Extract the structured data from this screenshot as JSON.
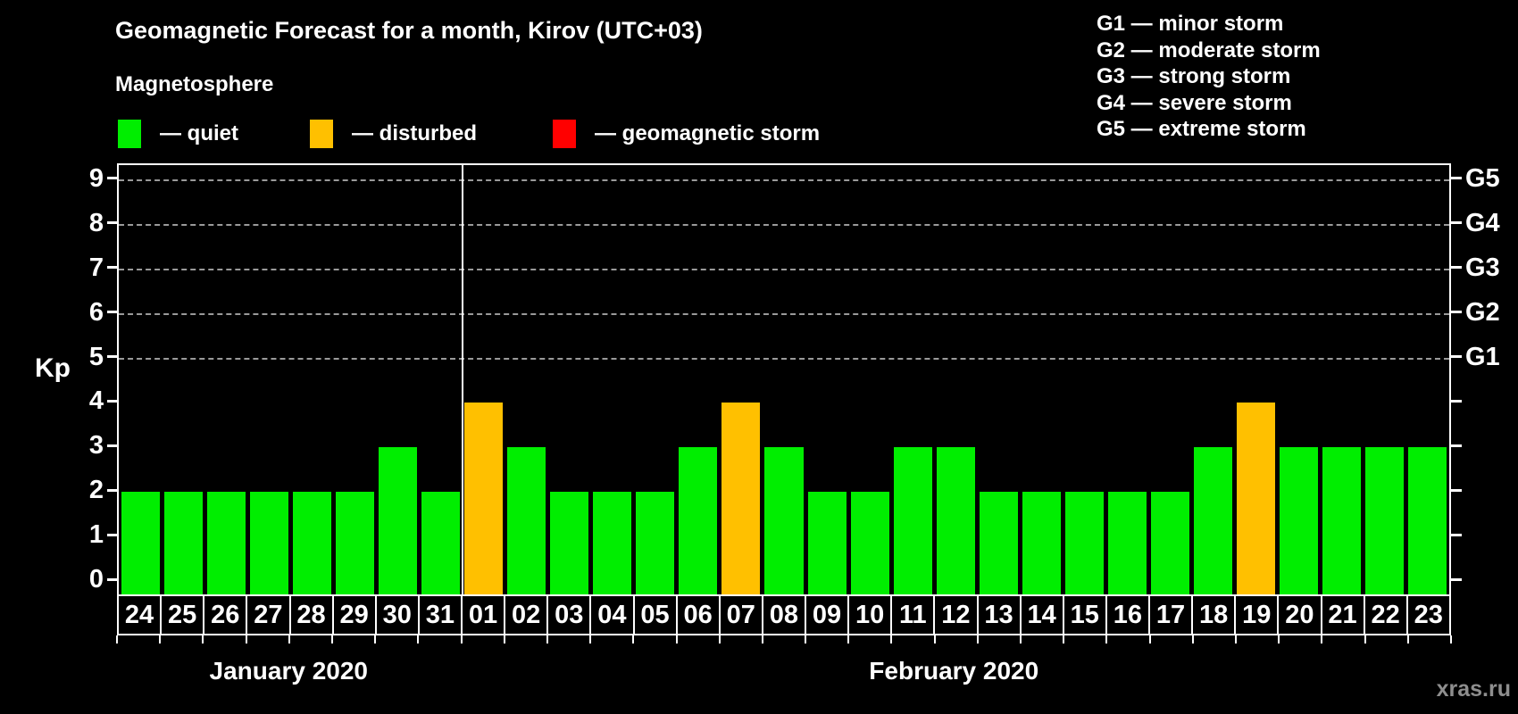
{
  "header": {
    "title": "Geomagnetic Forecast for a month, Kirov (UTC+03)",
    "subtitle": "Magnetosphere"
  },
  "legend": {
    "items": [
      {
        "label": "— quiet",
        "status": "quiet"
      },
      {
        "label": "— disturbed",
        "status": "disturbed"
      },
      {
        "label": "— geomagnetic storm",
        "status": "storm"
      }
    ]
  },
  "g_legend": {
    "items": [
      {
        "label": "G1 — minor storm"
      },
      {
        "label": "G2 — moderate storm"
      },
      {
        "label": "G3 — strong storm"
      },
      {
        "label": "G4 — severe storm"
      },
      {
        "label": "G5 — extreme storm"
      }
    ]
  },
  "watermark": "xras.ru",
  "chart_data": {
    "type": "bar",
    "title": "Geomagnetic Forecast for a month, Kirov (UTC+03)",
    "ylabel": "Kp",
    "xlabel": "",
    "ylim": [
      0,
      9
    ],
    "yticks": [
      0,
      1,
      2,
      3,
      4,
      5,
      6,
      7,
      8,
      9
    ],
    "gridlines_kp": [
      5,
      6,
      7,
      8,
      9
    ],
    "grid": "dashed horizontal at Kp 5-9 only",
    "legend_position": "top",
    "right_axis_labels": [
      {
        "kp": 5,
        "label": "G1"
      },
      {
        "kp": 6,
        "label": "G2"
      },
      {
        "kp": 7,
        "label": "G3"
      },
      {
        "kp": 8,
        "label": "G4"
      },
      {
        "kp": 9,
        "label": "G5"
      }
    ],
    "status_colors": {
      "quiet": "#00EE00",
      "disturbed": "#FFC000",
      "storm": "#FF0000"
    },
    "months": [
      {
        "label": "January 2020",
        "days": [
          {
            "day": "24",
            "kp": 2,
            "status": "quiet"
          },
          {
            "day": "25",
            "kp": 2,
            "status": "quiet"
          },
          {
            "day": "26",
            "kp": 2,
            "status": "quiet"
          },
          {
            "day": "27",
            "kp": 2,
            "status": "quiet"
          },
          {
            "day": "28",
            "kp": 2,
            "status": "quiet"
          },
          {
            "day": "29",
            "kp": 2,
            "status": "quiet"
          },
          {
            "day": "30",
            "kp": 3,
            "status": "quiet"
          },
          {
            "day": "31",
            "kp": 2,
            "status": "quiet"
          }
        ]
      },
      {
        "label": "February 2020",
        "days": [
          {
            "day": "01",
            "kp": 4,
            "status": "disturbed"
          },
          {
            "day": "02",
            "kp": 3,
            "status": "quiet"
          },
          {
            "day": "03",
            "kp": 2,
            "status": "quiet"
          },
          {
            "day": "04",
            "kp": 2,
            "status": "quiet"
          },
          {
            "day": "05",
            "kp": 2,
            "status": "quiet"
          },
          {
            "day": "06",
            "kp": 3,
            "status": "quiet"
          },
          {
            "day": "07",
            "kp": 4,
            "status": "disturbed"
          },
          {
            "day": "08",
            "kp": 3,
            "status": "quiet"
          },
          {
            "day": "09",
            "kp": 2,
            "status": "quiet"
          },
          {
            "day": "10",
            "kp": 2,
            "status": "quiet"
          },
          {
            "day": "11",
            "kp": 3,
            "status": "quiet"
          },
          {
            "day": "12",
            "kp": 3,
            "status": "quiet"
          },
          {
            "day": "13",
            "kp": 2,
            "status": "quiet"
          },
          {
            "day": "14",
            "kp": 2,
            "status": "quiet"
          },
          {
            "day": "15",
            "kp": 2,
            "status": "quiet"
          },
          {
            "day": "16",
            "kp": 2,
            "status": "quiet"
          },
          {
            "day": "17",
            "kp": 2,
            "status": "quiet"
          },
          {
            "day": "18",
            "kp": 3,
            "status": "quiet"
          },
          {
            "day": "19",
            "kp": 4,
            "status": "disturbed"
          },
          {
            "day": "20",
            "kp": 3,
            "status": "quiet"
          },
          {
            "day": "21",
            "kp": 3,
            "status": "quiet"
          },
          {
            "day": "22",
            "kp": 3,
            "status": "quiet"
          },
          {
            "day": "23",
            "kp": 3,
            "status": "quiet"
          }
        ]
      }
    ]
  }
}
